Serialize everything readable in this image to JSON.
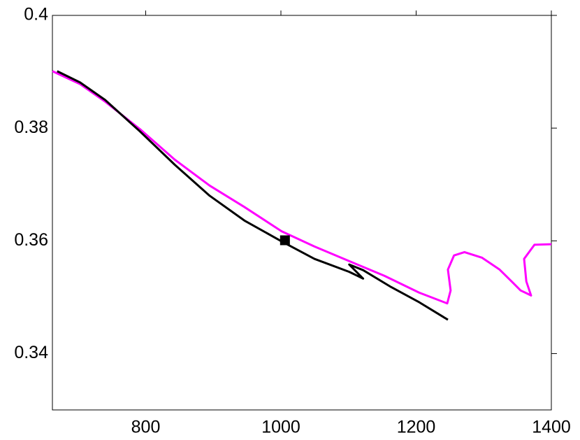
{
  "chart_data": {
    "type": "line",
    "xlim": [
      662,
      1400
    ],
    "xticks": [
      800,
      1000,
      1200,
      1400
    ],
    "ylim": [
      0.33,
      0.4
    ],
    "yticks": [
      0.34,
      0.36,
      0.38,
      0.4
    ],
    "series": [
      {
        "color": "#ff00ff",
        "mode": "line",
        "x": [
          662,
          703,
          740,
          791.7,
          843,
          894.6,
          946,
          1001,
          1049.6,
          1101,
          1153,
          1204.6,
          1246,
          1251,
          1247,
          1256,
          1271.5,
          1297.6,
          1323.5,
          1342,
          1354.5,
          1365,
          1370,
          1363,
          1359.7,
          1375,
          1400
        ],
        "values": [
          0.3901,
          0.3878,
          0.3847,
          0.3798,
          0.3744,
          0.3698,
          0.366,
          0.3617,
          0.359,
          0.3564,
          0.3538,
          0.3508,
          0.3489,
          0.3512,
          0.3549,
          0.3574,
          0.358,
          0.357,
          0.3549,
          0.3527,
          0.3512,
          0.3506,
          0.3503,
          0.3528,
          0.3568,
          0.3593,
          0.3594
        ]
      },
      {
        "color": "#000000",
        "mode": "line",
        "x": [
          669,
          703,
          740,
          791.7,
          843,
          894.6,
          946,
          1001,
          1049.6,
          1101,
          1121.6,
          1101,
          1121.6,
          1163,
          1204.6,
          1247
        ],
        "values": [
          0.3901,
          0.3881,
          0.385,
          0.3794,
          0.3735,
          0.368,
          0.3636,
          0.3599,
          0.3568,
          0.3545,
          0.3533,
          0.3558,
          0.3548,
          0.3518,
          0.3491,
          0.346
        ]
      },
      {
        "color": "#000000",
        "mode": "marker",
        "x": [
          1006
        ],
        "values": [
          0.3601
        ]
      }
    ]
  }
}
